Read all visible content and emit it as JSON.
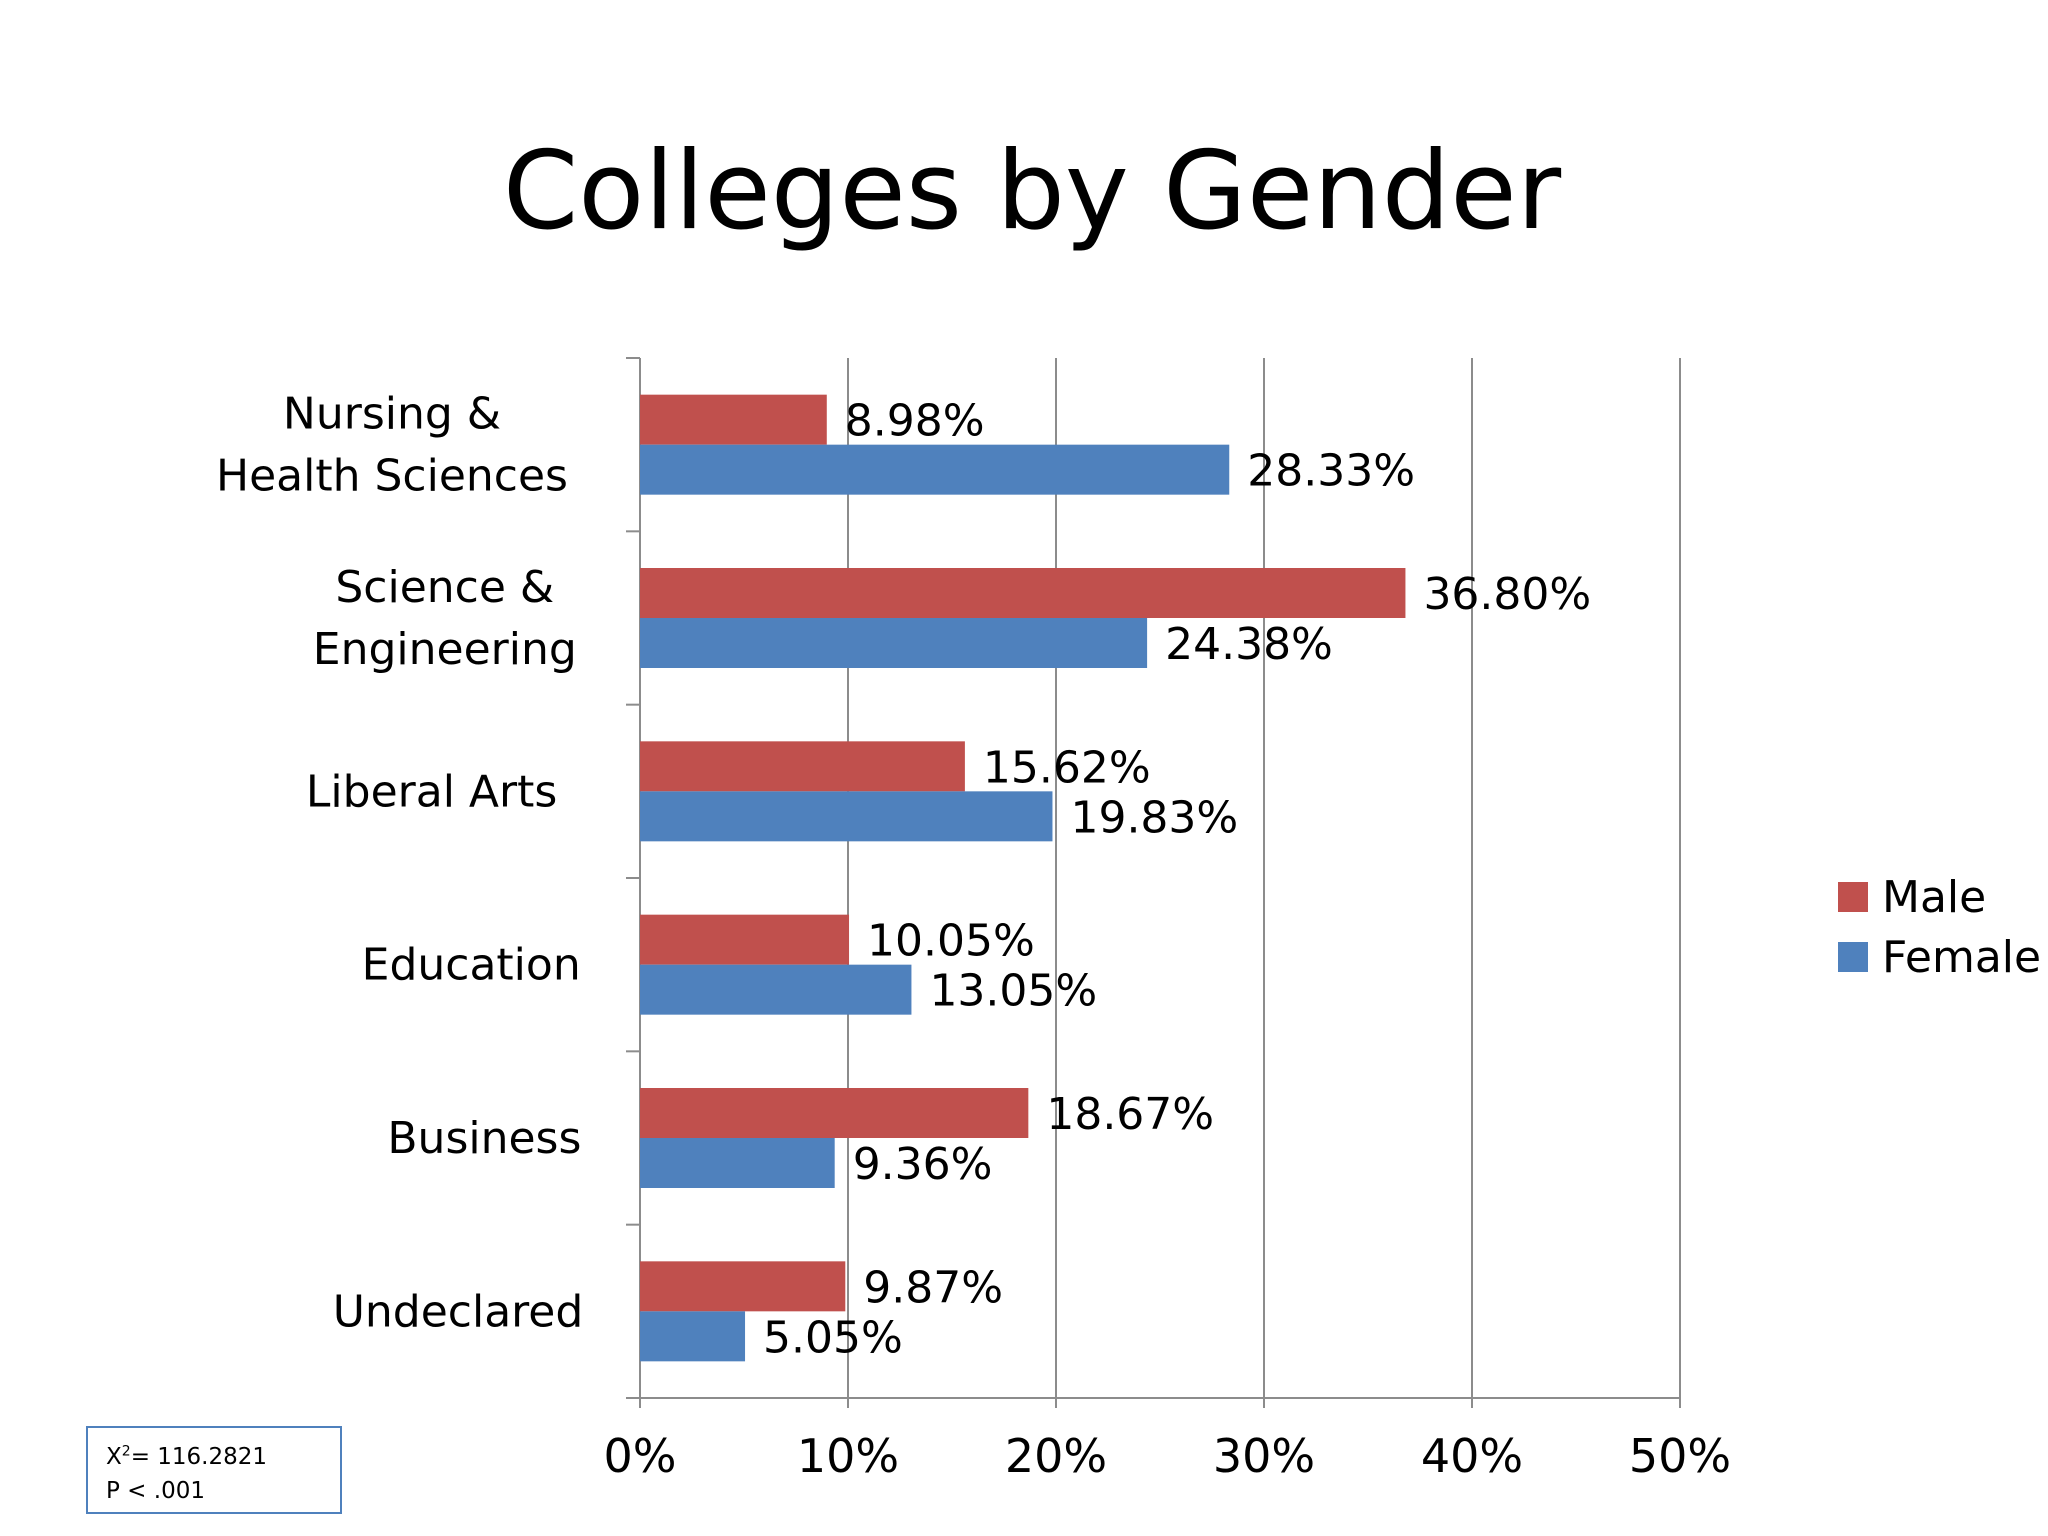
{
  "chart_data": {
    "type": "bar",
    "orientation": "horizontal",
    "title": "Colleges by Gender",
    "xlabel": "",
    "ylabel": "",
    "categories": [
      "Nursing & Health Sciences",
      "Science & Engineering",
      "Liberal Arts",
      "Education",
      "Business",
      "Undeclared"
    ],
    "series": [
      {
        "name": "Male",
        "color": "#C0504D",
        "values": [
          8.98,
          36.8,
          15.62,
          10.05,
          18.67,
          9.87
        ],
        "labels": [
          "8.98%",
          "36.80%",
          "15.62%",
          "10.05%",
          "18.67%",
          "9.87%"
        ]
      },
      {
        "name": "Female",
        "color": "#4F81BD",
        "values": [
          28.33,
          24.38,
          19.83,
          13.05,
          9.36,
          5.05
        ],
        "labels": [
          "28.33%",
          "24.38%",
          "19.83%",
          "13.05%",
          "9.36%",
          "5.05%"
        ]
      }
    ],
    "xlim": [
      0,
      50
    ],
    "x_ticks": [
      0,
      10,
      20,
      30,
      40,
      50
    ],
    "x_tick_labels": [
      "0%",
      "10%",
      "20%",
      "30%",
      "40%",
      "50%"
    ],
    "grid": true,
    "legend_position": "right"
  },
  "stats": {
    "chi_prefix": "X",
    "chi_sup": "2",
    "chi_value": "= 116.2821",
    "p_value": "P < .001"
  }
}
